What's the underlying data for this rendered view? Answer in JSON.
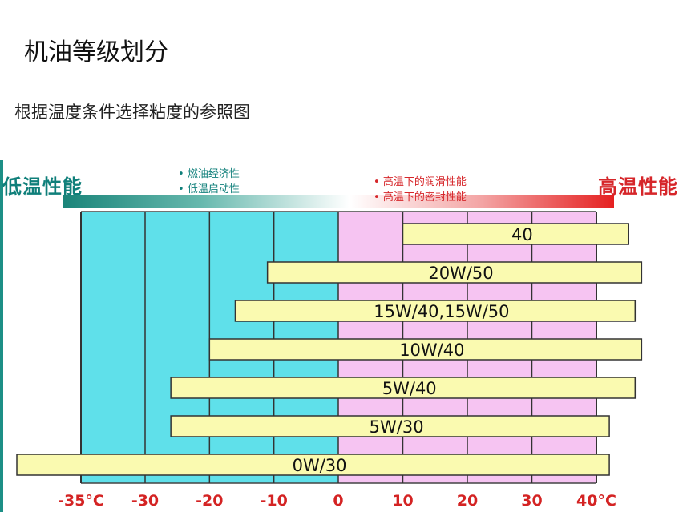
{
  "title": "机油等级划分",
  "subtitle": "根据温度条件选择粘度的参照图",
  "legend": {
    "cold_label": "低温性能",
    "hot_label": "高温性能",
    "cold_notes": [
      "燃油经济性",
      "低温启动性"
    ],
    "hot_notes": [
      "高温下的润滑性能",
      "高温下的密封性能"
    ]
  },
  "colors": {
    "cold_zone": "#5fe0ea",
    "hot_zone": "#f6c4f2",
    "bar_fill": "#fafab0",
    "tick_text": "#d42323",
    "cold_text": "#0f7f7a",
    "hot_text": "#d6262a"
  },
  "chart_data": {
    "type": "bar",
    "orientation": "horizontal-range",
    "x_unit": "°C",
    "xlim": [
      -35,
      40
    ],
    "x_ticks": [
      {
        "value": -35,
        "label": "-35°C"
      },
      {
        "value": -30,
        "label": "-30"
      },
      {
        "value": -20,
        "label": "-20"
      },
      {
        "value": -10,
        "label": "-10"
      },
      {
        "value": 0,
        "label": "0"
      },
      {
        "value": 10,
        "label": "10"
      },
      {
        "value": 20,
        "label": "20"
      },
      {
        "value": 30,
        "label": "30"
      },
      {
        "value": 40,
        "label": "40°C"
      }
    ],
    "bars": [
      {
        "grade": "40",
        "min": 10,
        "max": 45
      },
      {
        "grade": "20W/50",
        "min": -11,
        "max": 47
      },
      {
        "grade": "15W/40,15W/50",
        "min": -16,
        "max": 46
      },
      {
        "grade": "10W/40",
        "min": -20,
        "max": 47
      },
      {
        "grade": "5W/40",
        "min": -26,
        "max": 46
      },
      {
        "grade": "5W/30",
        "min": -26,
        "max": 42
      },
      {
        "grade": "0W/30",
        "min": -40,
        "max": 42
      }
    ]
  }
}
